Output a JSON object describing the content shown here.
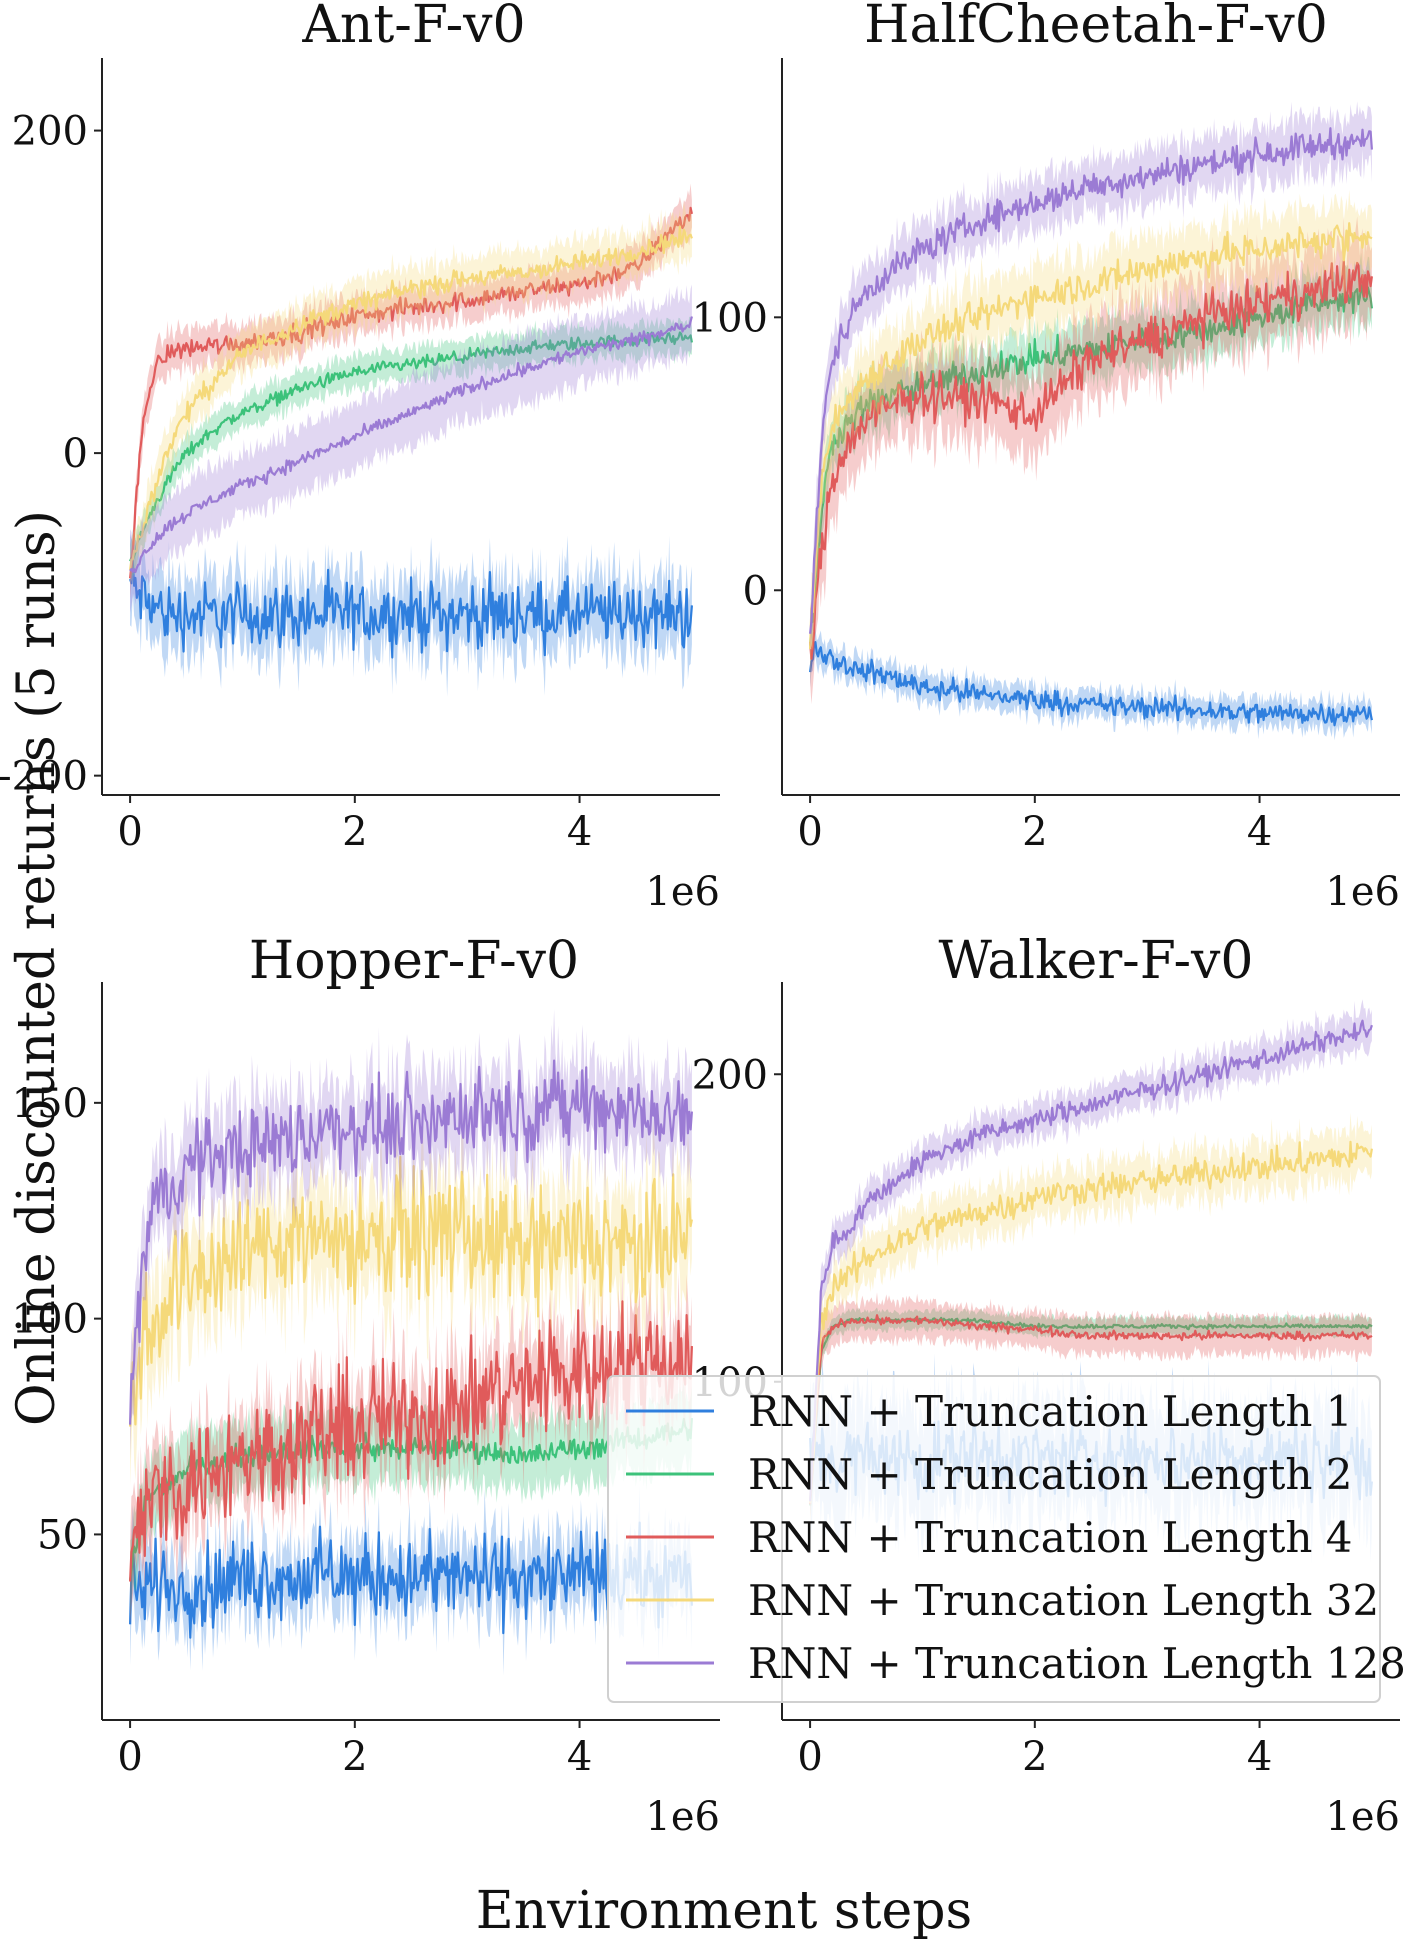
{
  "figure": {
    "xlabel": "Environment steps",
    "ylabel": "Online discounted returns (5 runs)"
  },
  "legend": {
    "placement": "lower-right of Walker-F-v0 panel",
    "entries": [
      {
        "label": "RNN + Truncation Length 1",
        "color": "#2f7fde"
      },
      {
        "label": "RNN + Truncation Length 2",
        "color": "#3cc27a"
      },
      {
        "label": "RNN + Truncation Length 4",
        "color": "#e05b5b"
      },
      {
        "label": "RNN + Truncation Length 32",
        "color": "#f5d97a"
      },
      {
        "label": "RNN + Truncation Length 128",
        "color": "#9b7bd4"
      }
    ]
  },
  "chart_data": [
    {
      "type": "line",
      "title": "Ant-F-v0",
      "x_offset_label": "1e6",
      "xticks": [
        0,
        2,
        4
      ],
      "yticks": [
        -200,
        0,
        200
      ],
      "xlim": [
        -0.25,
        5.25
      ],
      "ylim": [
        -212,
        245
      ],
      "grid": false,
      "x": [
        0,
        0.1,
        0.2,
        0.35,
        0.5,
        0.75,
        1.0,
        1.5,
        2.0,
        2.5,
        3.0,
        3.5,
        4.0,
        4.5,
        5.0
      ],
      "series": [
        {
          "name": "RNN + Truncation Length 1",
          "values": [
            -80,
            -90,
            -95,
            -100,
            -100,
            -100,
            -100,
            -100,
            -100,
            -100,
            -100,
            -100,
            -100,
            -100,
            -100
          ],
          "noise": 30,
          "band": 22
        },
        {
          "name": "RNN + Truncation Length 2",
          "values": [
            -70,
            -50,
            -35,
            -15,
            0,
            15,
            25,
            40,
            50,
            55,
            60,
            65,
            68,
            70,
            72
          ],
          "noise": 6,
          "band": 10
        },
        {
          "name": "RNN + Truncation Length 4",
          "values": [
            -80,
            10,
            50,
            63,
            65,
            67,
            68,
            75,
            85,
            90,
            95,
            100,
            105,
            115,
            150
          ],
          "noise": 9,
          "band": 12
        },
        {
          "name": "RNN + Truncation Length 32",
          "values": [
            -70,
            -50,
            -25,
            5,
            25,
            45,
            62,
            80,
            92,
            102,
            108,
            112,
            118,
            125,
            135
          ],
          "noise": 9,
          "band": 14
        },
        {
          "name": "RNN + Truncation Length 128",
          "values": [
            -75,
            -65,
            -55,
            -45,
            -38,
            -28,
            -20,
            -5,
            10,
            25,
            40,
            52,
            63,
            70,
            80
          ],
          "noise": 6,
          "band": 20
        }
      ]
    },
    {
      "type": "line",
      "title": "HalfCheetah-F-v0",
      "x_offset_label": "1e6",
      "xticks": [
        0,
        2,
        4
      ],
      "yticks": [
        0,
        100
      ],
      "xlim": [
        -0.25,
        5.25
      ],
      "ylim": [
        -75,
        195
      ],
      "grid": false,
      "x": [
        0,
        0.05,
        0.1,
        0.2,
        0.35,
        0.5,
        0.75,
        1.0,
        1.5,
        2.0,
        2.5,
        3.0,
        3.5,
        4.0,
        4.5,
        5.0
      ],
      "series": [
        {
          "name": "RNN + Truncation Length 1",
          "values": [
            -25,
            -20,
            -22,
            -25,
            -28,
            -30,
            -32,
            -35,
            -38,
            -40,
            -42,
            -43,
            -44,
            -45,
            -45,
            -45
          ],
          "noise": 6,
          "band": 5
        },
        {
          "name": "RNN + Truncation Length 2",
          "values": [
            -20,
            0,
            30,
            55,
            62,
            68,
            72,
            75,
            80,
            85,
            88,
            92,
            95,
            100,
            105,
            108
          ],
          "noise": 8,
          "band": 10
        },
        {
          "name": "RNN + Truncation Length 4",
          "values": [
            -25,
            -10,
            15,
            40,
            55,
            62,
            68,
            72,
            70,
            65,
            85,
            92,
            100,
            105,
            110,
            115
          ],
          "noise": 12,
          "band": 15
        },
        {
          "name": "RNN + Truncation Length 32",
          "values": [
            -20,
            10,
            40,
            60,
            70,
            78,
            85,
            92,
            100,
            108,
            112,
            118,
            122,
            125,
            128,
            130
          ],
          "noise": 9,
          "band": 12
        },
        {
          "name": "RNN + Truncation Length 128",
          "values": [
            -20,
            20,
            55,
            85,
            100,
            110,
            118,
            125,
            135,
            142,
            148,
            152,
            156,
            160,
            163,
            165
          ],
          "noise": 8,
          "band": 10
        }
      ]
    },
    {
      "type": "line",
      "title": "Hopper-F-v0",
      "x_offset_label": "1e6",
      "xticks": [
        0,
        2,
        4
      ],
      "yticks": [
        50,
        100,
        150
      ],
      "xlim": [
        -0.25,
        5.25
      ],
      "ylim": [
        7,
        178
      ],
      "grid": false,
      "x": [
        0,
        0.1,
        0.2,
        0.35,
        0.5,
        0.75,
        1.0,
        1.5,
        2.0,
        2.5,
        3.0,
        3.5,
        4.0,
        4.5,
        5.0
      ],
      "series": [
        {
          "name": "RNN + Truncation Length 1",
          "values": [
            40,
            38,
            38,
            38,
            38,
            38,
            40,
            40,
            40,
            40,
            40,
            40,
            40,
            40,
            40
          ],
          "noise": 14,
          "band": 8
        },
        {
          "name": "RNN + Truncation Length 2",
          "values": [
            40,
            55,
            60,
            62,
            65,
            67,
            68,
            70,
            70,
            70,
            70,
            68,
            70,
            72,
            75
          ],
          "noise": 4,
          "band": 8
        },
        {
          "name": "RNN + Truncation Length 4",
          "values": [
            40,
            55,
            58,
            60,
            62,
            65,
            68,
            72,
            75,
            78,
            80,
            85,
            88,
            90,
            92
          ],
          "noise": 20,
          "band": 10
        },
        {
          "name": "RNN + Truncation Length 32",
          "values": [
            75,
            95,
            100,
            105,
            110,
            112,
            115,
            120,
            118,
            120,
            120,
            115,
            118,
            115,
            120
          ],
          "noise": 20,
          "band": 12
        },
        {
          "name": "RNN + Truncation Length 128",
          "values": [
            80,
            110,
            125,
            130,
            135,
            138,
            140,
            142,
            145,
            145,
            148,
            148,
            150,
            148,
            145
          ],
          "noise": 14,
          "band": 10
        }
      ]
    },
    {
      "type": "line",
      "title": "Walker-F-v0",
      "x_offset_label": "1e6",
      "xticks": [
        0,
        2,
        4
      ],
      "yticks": [
        100,
        200
      ],
      "xlim": [
        -0.25,
        5.25
      ],
      "ylim": [
        -10,
        230
      ],
      "grid": false,
      "x": [
        0,
        0.1,
        0.2,
        0.35,
        0.5,
        0.75,
        1.0,
        1.5,
        2.0,
        2.5,
        3.0,
        3.5,
        4.0,
        4.5,
        5.0
      ],
      "series": [
        {
          "name": "RNN + Truncation Length 1",
          "values": [
            80,
            75,
            75,
            75,
            75,
            75,
            75,
            75,
            75,
            75,
            75,
            75,
            75,
            75,
            75
          ],
          "noise": 18,
          "band": 18
        },
        {
          "name": "RNN + Truncation Length 2",
          "values": [
            60,
            110,
            118,
            120,
            120,
            120,
            120,
            120,
            118,
            118,
            118,
            118,
            118,
            118,
            118
          ],
          "noise": 1,
          "band": 3
        },
        {
          "name": "RNN + Truncation Length 4",
          "values": [
            60,
            112,
            118,
            120,
            120,
            120,
            120,
            118,
            117,
            115,
            115,
            115,
            115,
            115,
            115
          ],
          "noise": 2,
          "band": 6
        },
        {
          "name": "RNN + Truncation Length 32",
          "values": [
            60,
            120,
            130,
            135,
            140,
            145,
            150,
            155,
            160,
            163,
            165,
            168,
            170,
            172,
            175
          ],
          "noise": 7,
          "band": 8
        },
        {
          "name": "RNN + Truncation Length 128",
          "values": [
            60,
            130,
            145,
            150,
            158,
            165,
            172,
            180,
            185,
            190,
            195,
            200,
            205,
            210,
            215
          ],
          "noise": 5,
          "band": 6
        }
      ]
    }
  ]
}
